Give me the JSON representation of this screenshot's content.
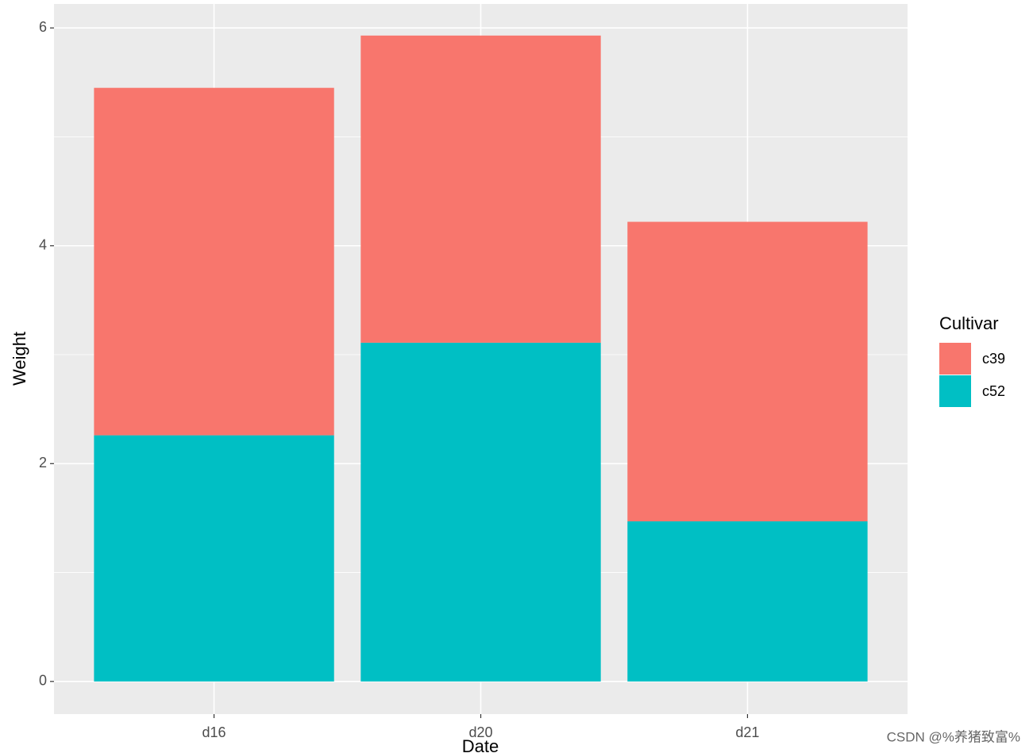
{
  "chart_data": {
    "type": "stacked_bar",
    "x_label": "Date",
    "y_label": "Weight",
    "categories": [
      "d16",
      "d20",
      "d21"
    ],
    "series": [
      {
        "name": "c39",
        "color": "#f8766d",
        "values": [
          3.19,
          2.82,
          2.75
        ]
      },
      {
        "name": "c52",
        "color": "#00bfc4",
        "values": [
          2.26,
          3.11,
          1.47
        ]
      }
    ],
    "legend_title": "Cultivar",
    "legend": "right",
    "ylim": [
      -0.3,
      6.22
    ],
    "yticks": [
      0,
      2,
      4,
      6
    ],
    "minor_yticks": [
      1,
      3,
      5
    ],
    "grid": true,
    "watermark": "CSDN @%养猪致富%"
  }
}
